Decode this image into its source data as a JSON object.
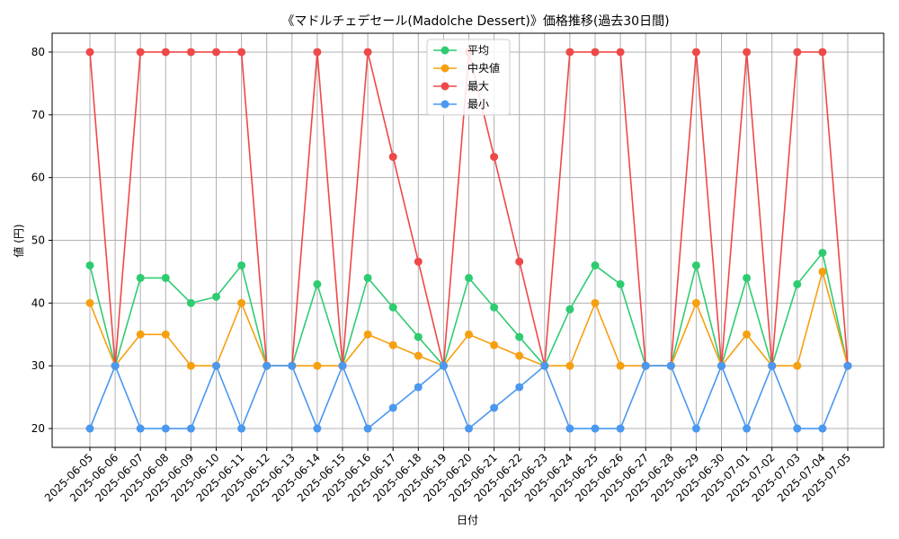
{
  "chart_data": {
    "type": "line",
    "title": "《マドルチェデセール(Madolche Dessert)》価格推移(過去30日間)",
    "xlabel": "日付",
    "ylabel": "値 (円)",
    "ylim": [
      17,
      83
    ],
    "yticks": [
      20,
      30,
      40,
      50,
      60,
      70,
      80
    ],
    "grid": true,
    "legend_position": "top-center",
    "categories": [
      "2025-06-05",
      "2025-06-06",
      "2025-06-07",
      "2025-06-08",
      "2025-06-09",
      "2025-06-10",
      "2025-06-11",
      "2025-06-12",
      "2025-06-13",
      "2025-06-14",
      "2025-06-15",
      "2025-06-16",
      "2025-06-17",
      "2025-06-18",
      "2025-06-19",
      "2025-06-20",
      "2025-06-21",
      "2025-06-22",
      "2025-06-23",
      "2025-06-24",
      "2025-06-25",
      "2025-06-26",
      "2025-06-27",
      "2025-06-28",
      "2025-06-29",
      "2025-06-30",
      "2025-07-01",
      "2025-07-02",
      "2025-07-03",
      "2025-07-04",
      "2025-07-05"
    ],
    "series": [
      {
        "name": "平均",
        "color": "#2ecc71",
        "values": [
          46,
          30,
          44,
          44,
          40,
          41,
          46,
          30,
          30,
          43,
          30,
          44,
          39.3,
          34.6,
          30,
          44,
          39.3,
          34.6,
          30,
          39,
          46,
          43,
          30,
          30,
          46,
          30,
          44,
          30,
          43,
          48,
          30
        ]
      },
      {
        "name": "中央値",
        "color": "#f5a010",
        "values": [
          40,
          30,
          35,
          35,
          30,
          30,
          40,
          30,
          30,
          30,
          30,
          35,
          33.3,
          31.6,
          30,
          35,
          33.3,
          31.6,
          30,
          30,
          40,
          30,
          30,
          30,
          40,
          30,
          35,
          30,
          30,
          45,
          30
        ]
      },
      {
        "name": "最大",
        "color": "#ef4848",
        "values": [
          80,
          30,
          80,
          80,
          80,
          80,
          80,
          30,
          30,
          80,
          30,
          80,
          63.3,
          46.6,
          30,
          80,
          63.3,
          46.6,
          30,
          80,
          80,
          80,
          30,
          30,
          80,
          30,
          80,
          30,
          80,
          80,
          30
        ]
      },
      {
        "name": "最小",
        "color": "#4a98f0",
        "values": [
          20,
          30,
          20,
          20,
          20,
          30,
          20,
          30,
          30,
          20,
          30,
          20,
          23.3,
          26.6,
          30,
          20,
          23.3,
          26.6,
          30,
          20,
          20,
          20,
          30,
          30,
          20,
          30,
          20,
          30,
          20,
          20,
          30
        ]
      }
    ]
  }
}
